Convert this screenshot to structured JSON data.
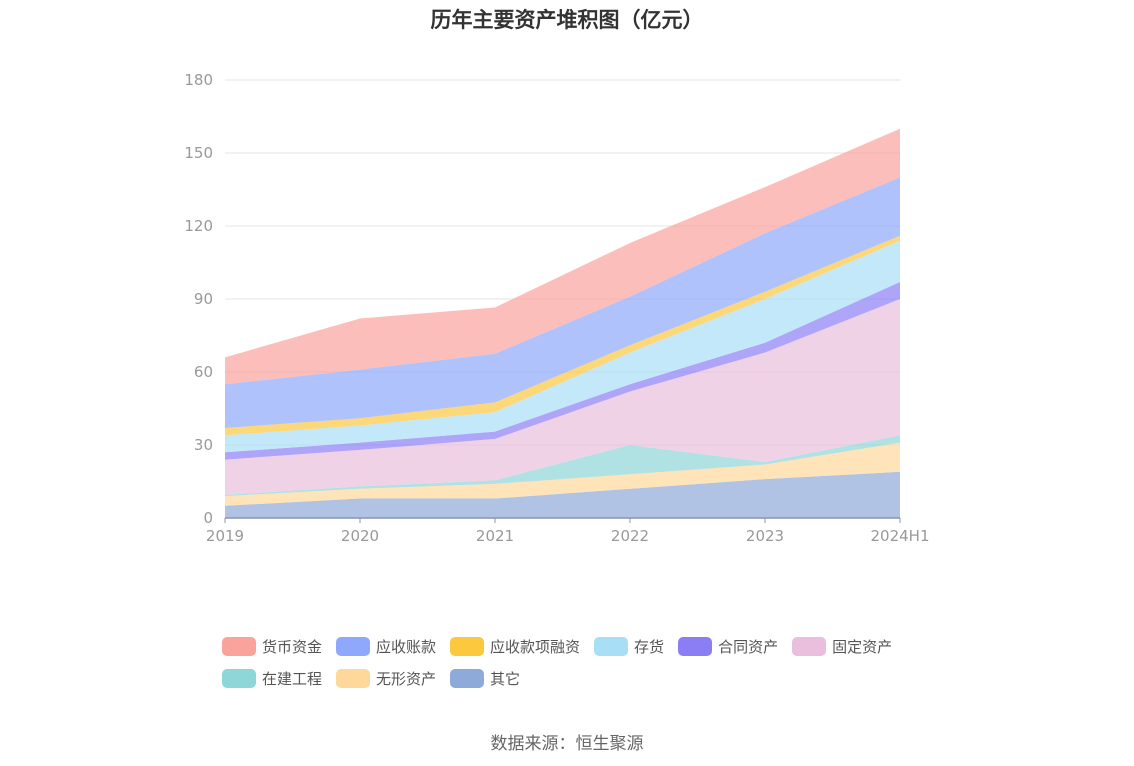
{
  "chart_data": {
    "type": "area",
    "stacked": true,
    "title": "历年主要资产堆积图（亿元）",
    "source": "数据来源：恒生聚源",
    "categories": [
      "2019",
      "2020",
      "2021",
      "2022",
      "2023",
      "2024H1"
    ],
    "ylim": [
      0,
      180
    ],
    "yticks": [
      "0",
      "30",
      "60",
      "90",
      "120",
      "150",
      "180"
    ],
    "grid": true,
    "legend_position": "bottom",
    "series": [
      {
        "name": "其它",
        "color": "#8eaad8",
        "values": [
          5,
          8,
          8,
          12,
          16,
          19
        ]
      },
      {
        "name": "无形资产",
        "color": "#fdd89a",
        "values": [
          4,
          4,
          6,
          6,
          6,
          12
        ]
      },
      {
        "name": "在建工程",
        "color": "#8fd6d8",
        "values": [
          0.5,
          1,
          1.5,
          12,
          1,
          3
        ]
      },
      {
        "name": "固定资产",
        "color": "#eabfdd",
        "values": [
          14.5,
          15,
          17,
          22,
          45,
          56
        ]
      },
      {
        "name": "合同资产",
        "color": "#8b7ef5",
        "values": [
          3,
          3,
          3,
          3,
          4,
          7
        ]
      },
      {
        "name": "存货",
        "color": "#a9def7",
        "values": [
          7,
          7,
          8,
          13,
          18,
          17
        ]
      },
      {
        "name": "应收款项融资",
        "color": "#fcc83e",
        "values": [
          3,
          3,
          4,
          3,
          3,
          2
        ]
      },
      {
        "name": "应收账款",
        "color": "#8fa8fb",
        "values": [
          18,
          20,
          20,
          20,
          24,
          24
        ]
      },
      {
        "name": "货币资金",
        "color": "#f9a39c",
        "values": [
          11,
          21,
          19,
          22,
          19,
          20
        ]
      }
    ]
  }
}
